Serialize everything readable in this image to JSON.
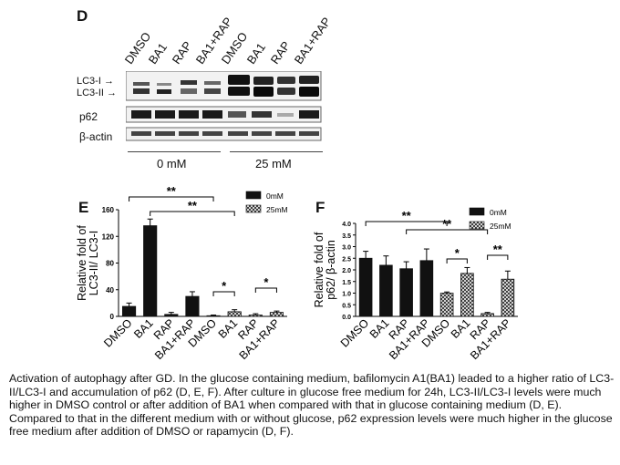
{
  "panel_d": {
    "letter": "D",
    "lanes": [
      "DMSO",
      "BA1",
      "RAP",
      "BA1+RAP",
      "DMSO",
      "BA1",
      "RAP",
      "BA1+RAP"
    ],
    "rows": [
      "LC3-I",
      "LC3-II",
      "p62",
      "β-actin"
    ],
    "groups": [
      "0 mM",
      "25 mM"
    ],
    "arrow": "→"
  },
  "chart_data": [
    {
      "panel": "E",
      "type": "bar",
      "ylabel": "Relative fold of LC3-II/ LC3-I",
      "ylim": [
        0,
        160
      ],
      "yticks": [
        0,
        40,
        80,
        120,
        160
      ],
      "categories": [
        "DMSO",
        "BA1",
        "RAP",
        "BA1+RAP",
        "DMSO",
        "BA1",
        "RAP",
        "BA1+RAP"
      ],
      "series": [
        {
          "name": "0mM",
          "values": [
            15,
            136,
            3,
            30,
            null,
            null,
            null,
            null
          ],
          "errors": [
            5,
            10,
            3,
            7,
            null,
            null,
            null,
            null
          ],
          "color": "#111111"
        },
        {
          "name": "25mM",
          "values": [
            null,
            null,
            null,
            null,
            1,
            7,
            2,
            6
          ],
          "errors": [
            null,
            null,
            null,
            null,
            1,
            3,
            2,
            2
          ],
          "color": "hatched"
        }
      ],
      "significance": [
        {
          "from": 0,
          "to": 4,
          "label": "**"
        },
        {
          "from": 1,
          "to": 5,
          "label": "**"
        },
        {
          "from": 4,
          "to": 5,
          "label": "*"
        },
        {
          "from": 6,
          "to": 7,
          "label": "*"
        }
      ],
      "legend_position": "top-right"
    },
    {
      "panel": "F",
      "type": "bar",
      "ylabel": "Relative fold of p62/ β-actin",
      "ylim": [
        0,
        4
      ],
      "yticks": [
        "0.0",
        "0.5",
        "1.0",
        "1.5",
        "2.0",
        "2.5",
        "3.0",
        "3.5",
        "4.0"
      ],
      "categories": [
        "DMSO",
        "BA1",
        "RAP",
        "BA1+RAP",
        "DMSO",
        "BA1",
        "RAP",
        "BA1+RAP"
      ],
      "series": [
        {
          "name": "0mM",
          "values": [
            2.5,
            2.2,
            2.05,
            2.4,
            null,
            null,
            null,
            null
          ],
          "errors": [
            0.3,
            0.4,
            0.3,
            0.5,
            null,
            null,
            null,
            null
          ],
          "color": "#111111"
        },
        {
          "name": "25mM",
          "values": [
            null,
            null,
            null,
            null,
            1.0,
            1.85,
            0.12,
            1.6
          ],
          "errors": [
            null,
            null,
            null,
            null,
            0.05,
            0.25,
            0.05,
            0.35
          ],
          "color": "hatched"
        }
      ],
      "significance": [
        {
          "from": 0,
          "to": 4,
          "label": "**"
        },
        {
          "from": 2,
          "to": 6,
          "label": "**"
        },
        {
          "from": 4,
          "to": 5,
          "label": "*"
        },
        {
          "from": 6,
          "to": 7,
          "label": "**"
        }
      ],
      "legend_position": "top-right"
    }
  ],
  "caption": "Activation of autophagy after GD. In the glucose containing medium, bafilomycin A1(BA1) leaded to a higher ratio of LC3-II/LC3-I and accumulation of p62 (D, E, F). After culture in glucose free medium for 24h, LC3-II/LC3-I levels were much higher in DMSO control or after addition of BA1 when compared with that in glucose containing medium (D, E). Compared to that in the different medium with or without glucose, p62 expression levels were much higher in the glucose free medium after addition of DMSO or rapamycin (D, F)."
}
